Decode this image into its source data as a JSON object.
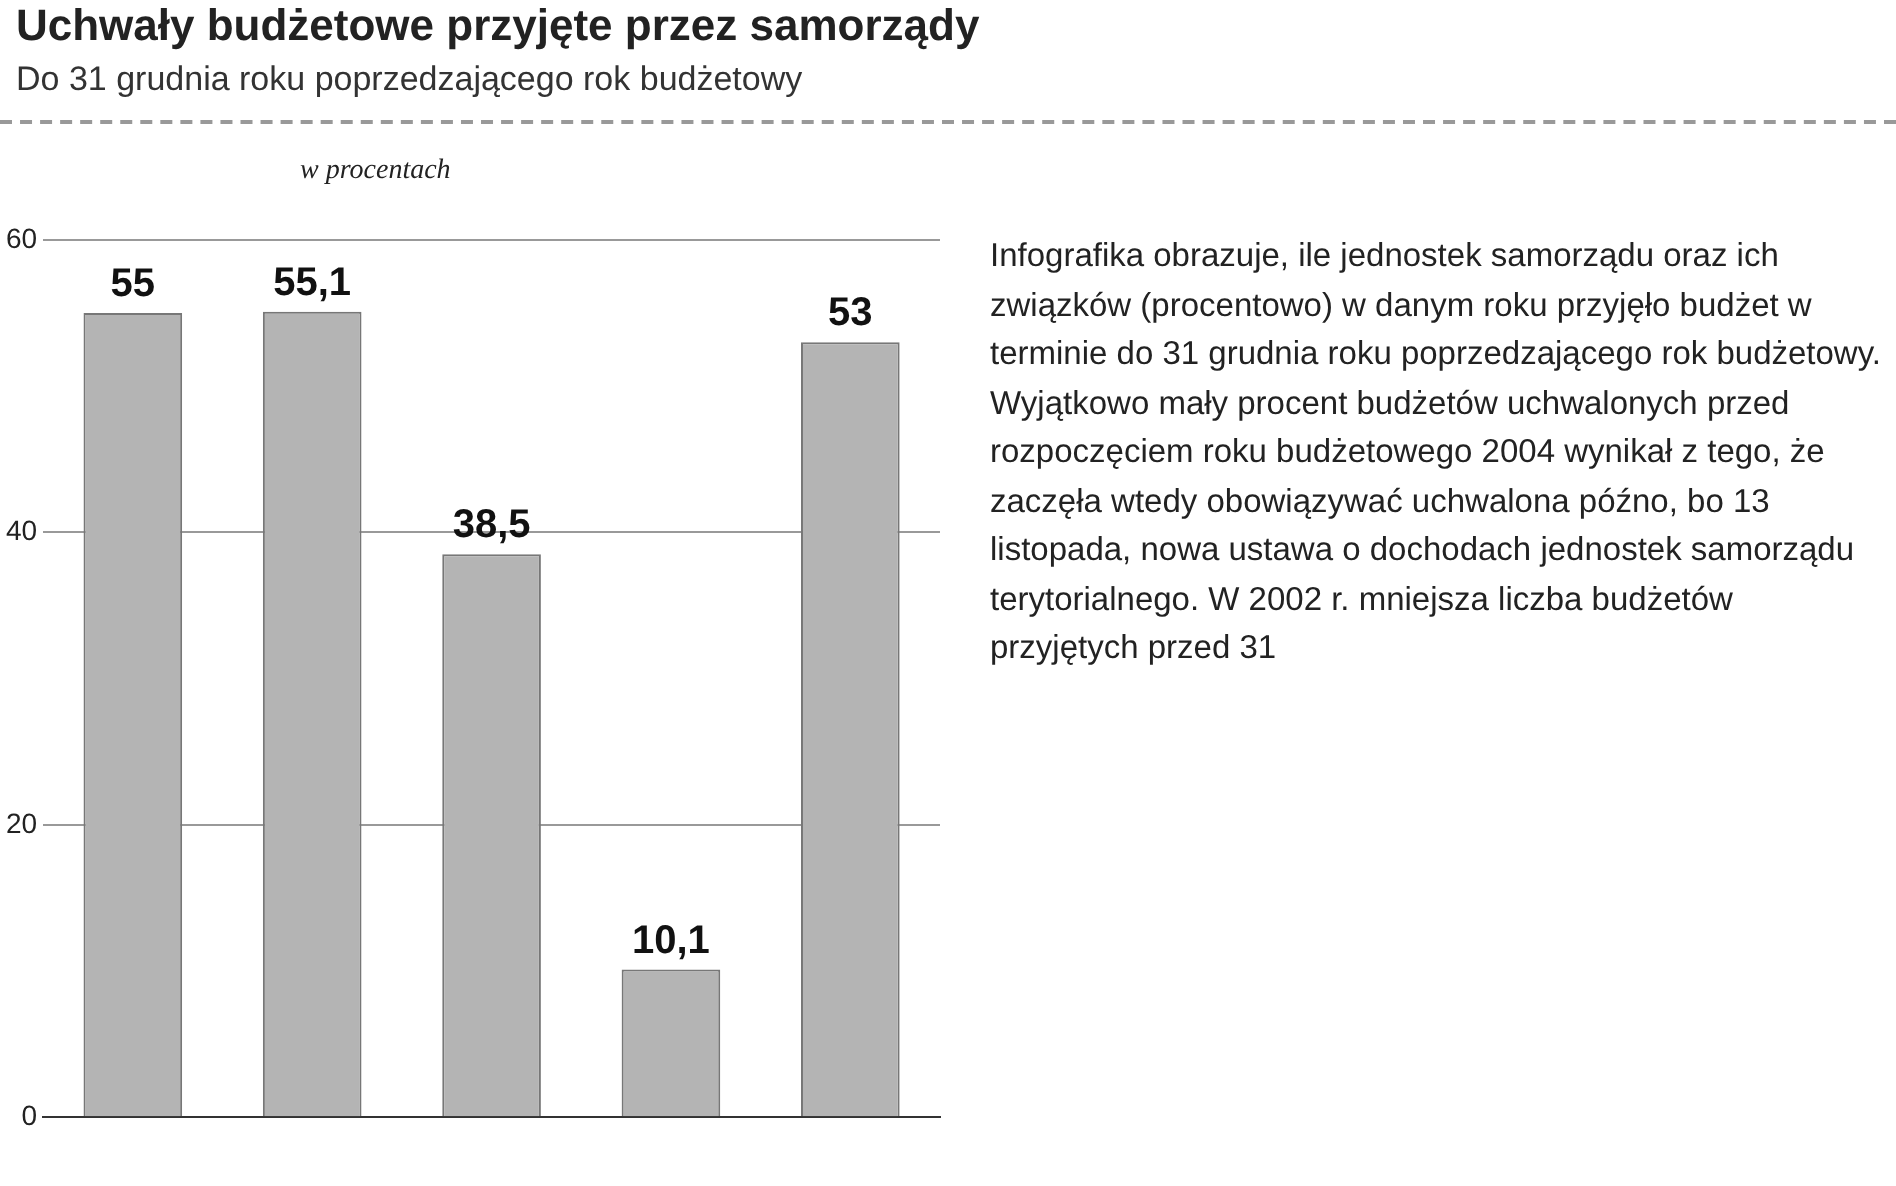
{
  "chart_data": {
    "type": "bar",
    "title": "Uchwały budżetowe przyjęte przez samorządy",
    "subtitle": "Do 31 grudnia roku poprzedzającego rok budżetowy",
    "ylabel": "w procentach",
    "categories": [
      null,
      null,
      null,
      null,
      null
    ],
    "values": [
      55,
      55.1,
      38.5,
      10.1,
      53
    ],
    "value_labels": [
      "55",
      "55,1",
      "38,5",
      "10,1",
      "53"
    ],
    "color": "#b4b4b4",
    "ylim": [
      0,
      60
    ],
    "yticks": [
      0,
      20,
      40,
      60
    ],
    "grid": "y",
    "legend": false,
    "annotations": [
      "Infografika obrazuje, ile jednostek samorządu oraz ich związków (procentowo) w danym roku przyjęło budżet w terminie do 31 grudnia roku poprzedzającego rok budżetowy. Wyjątkowo mały procent budżetów uchwalonych przed rozpoczęciem roku budżetowego 2004 wynikał z tego, że zaczęła wtedy obowiązywać uchwalona późno, bo 13 listopada, nowa ustawa o dochodach jednostek samorządu terytorialnego. W 2002 r. mniejsza liczba budżetów przyjętych przed 31"
    ]
  }
}
